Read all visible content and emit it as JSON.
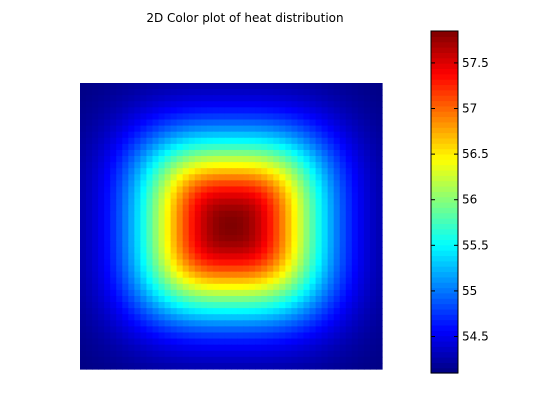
{
  "chart_data": {
    "type": "heatmap",
    "title": "2D Color plot of heat distribution",
    "xlabel": "",
    "ylabel": "",
    "axes_visible": false,
    "grid": false,
    "colormap": "jet",
    "colorbar": {
      "placement": "right",
      "range": [
        54.1,
        57.85
      ],
      "ticks": [
        54.5,
        55,
        55.5,
        56,
        56.5,
        57,
        57.5
      ],
      "tick_labels": [
        "54.5",
        "55",
        "55.5",
        "56",
        "56.5",
        "57",
        "57.5"
      ]
    },
    "field": {
      "grid_size": [
        50,
        47
      ],
      "peak_value": 57.85,
      "peak_center": [
        0.5,
        0.5
      ],
      "edge_value": 54.1,
      "shape": "radial, squarish core"
    }
  }
}
